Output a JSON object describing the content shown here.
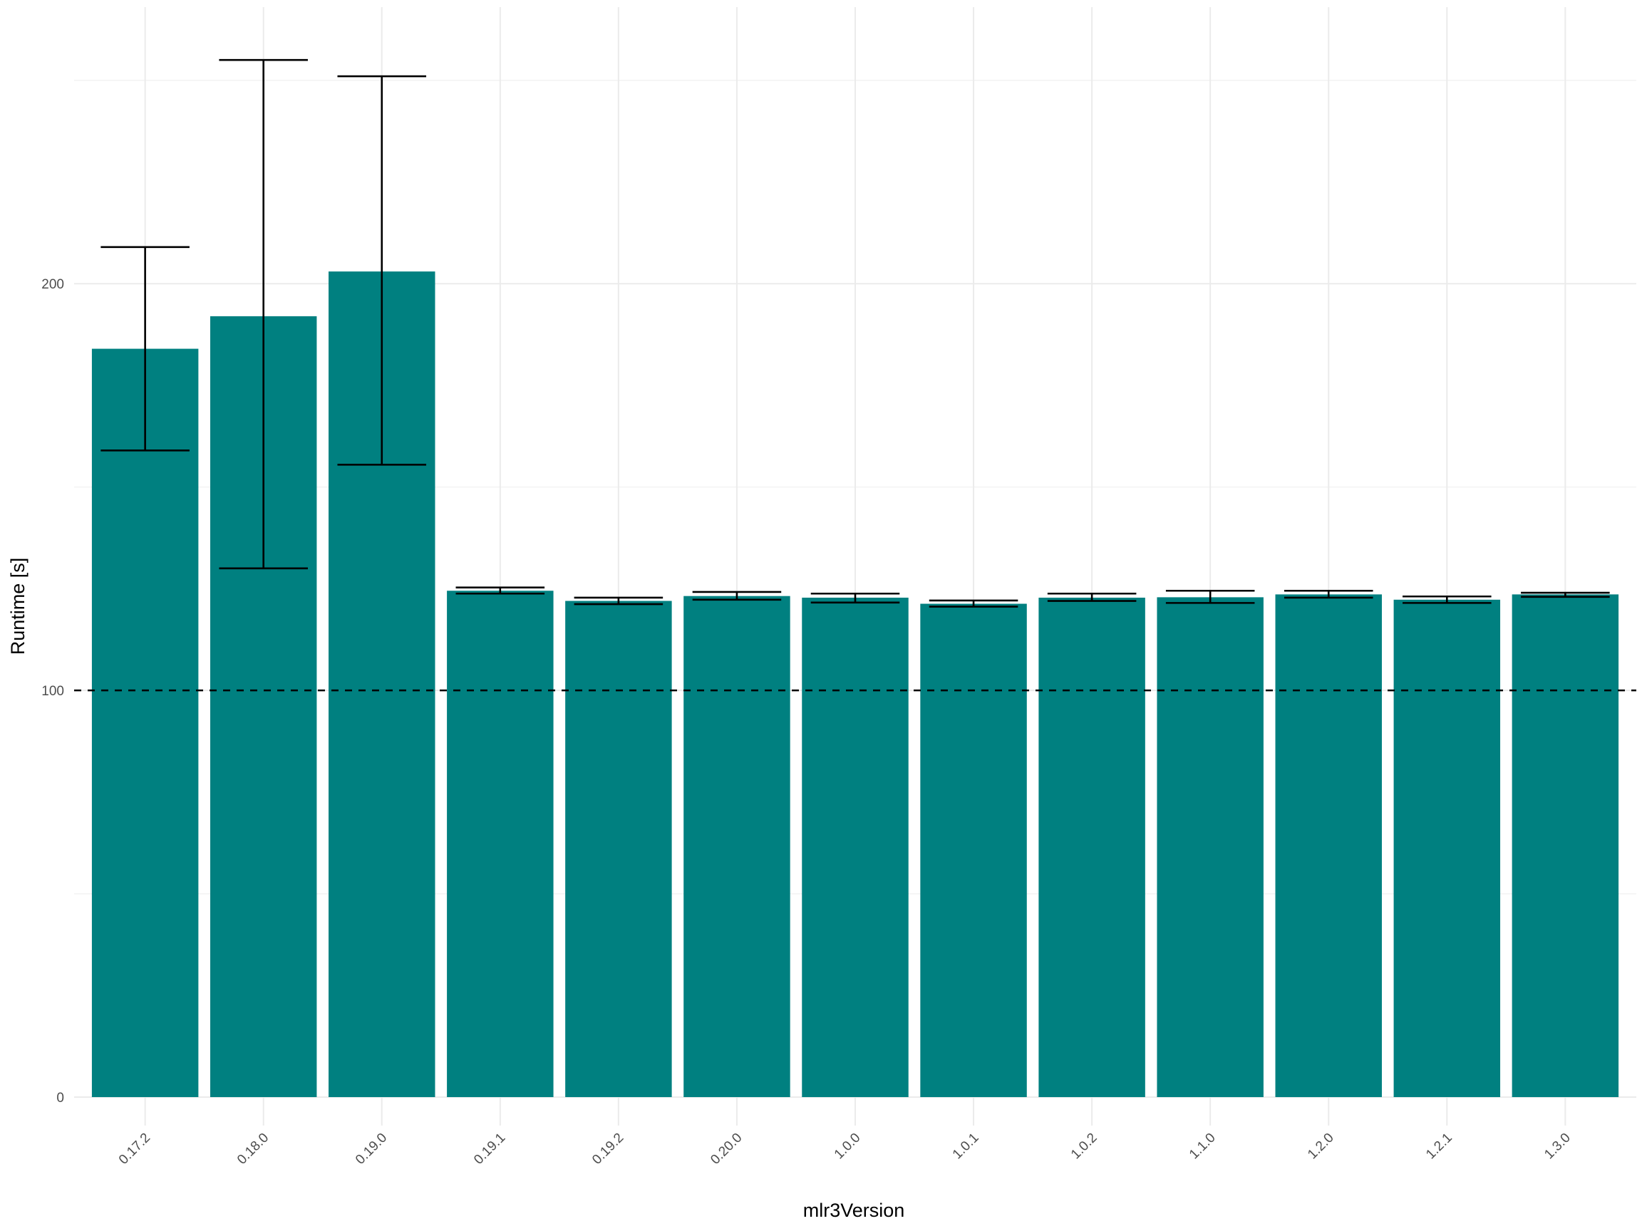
{
  "chart_data": {
    "type": "bar",
    "xlabel": "mlr3Version",
    "ylabel": "Runtime [s]",
    "categories": [
      "0.17.2",
      "0.18.0",
      "0.19.0",
      "0.19.1",
      "0.19.2",
      "0.20.0",
      "1.0.0",
      "1.0.1",
      "1.0.2",
      "1.1.0",
      "1.2.0",
      "1.2.1",
      "1.3.0"
    ],
    "values": [
      184,
      192,
      203,
      124.5,
      122,
      123.2,
      122.8,
      121.3,
      122.8,
      122.9,
      123.6,
      122.3,
      123.6
    ],
    "error_low": [
      159,
      130,
      155.5,
      123.8,
      121.2,
      122.3,
      121.6,
      120.6,
      122,
      121.5,
      122.8,
      121.5,
      123
    ],
    "error_high": [
      209,
      255,
      251,
      125.3,
      122.8,
      124.2,
      123.8,
      122.1,
      123.8,
      124.5,
      124.5,
      123.1,
      124
    ],
    "y_ticks": [
      0,
      100,
      200
    ],
    "ylim": [
      -7,
      268
    ],
    "reference_line": 100,
    "grid": true,
    "bar_color": "#008080"
  }
}
